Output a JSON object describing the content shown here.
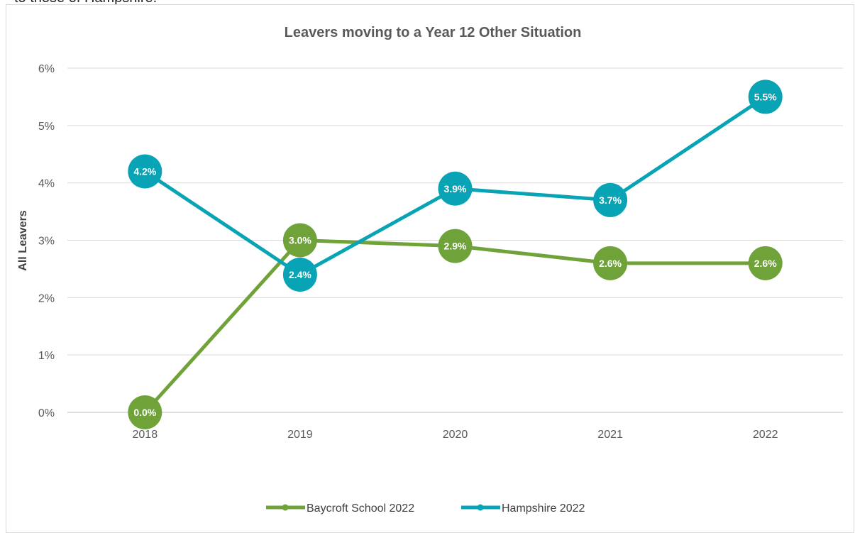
{
  "page": {
    "top_text": "to those of Hampshire."
  },
  "chart_data": {
    "type": "line",
    "title": "Leavers moving to a Year 12 Other Situation",
    "xlabel": "",
    "ylabel": "All Leavers",
    "categories": [
      "2018",
      "2019",
      "2020",
      "2021",
      "2022"
    ],
    "ylim": [
      0,
      6
    ],
    "yticks": [
      0,
      1,
      2,
      3,
      4,
      5,
      6
    ],
    "ytick_labels": [
      "0%",
      "1%",
      "2%",
      "3%",
      "4%",
      "5%",
      "6%"
    ],
    "grid": true,
    "legend": "bottom",
    "series": [
      {
        "name": "Baycroft School 2022",
        "color": "#70a23a",
        "values": [
          0.0,
          3.0,
          2.9,
          2.6,
          2.6
        ],
        "labels": [
          "0.0%",
          "3.0%",
          "2.9%",
          "2.6%",
          "2.6%"
        ]
      },
      {
        "name": "Hampshire 2022",
        "color": "#08a3b5",
        "values": [
          4.2,
          2.4,
          3.9,
          3.7,
          5.5
        ],
        "labels": [
          "4.2%",
          "2.4%",
          "3.9%",
          "3.7%",
          "5.5%"
        ]
      }
    ]
  }
}
